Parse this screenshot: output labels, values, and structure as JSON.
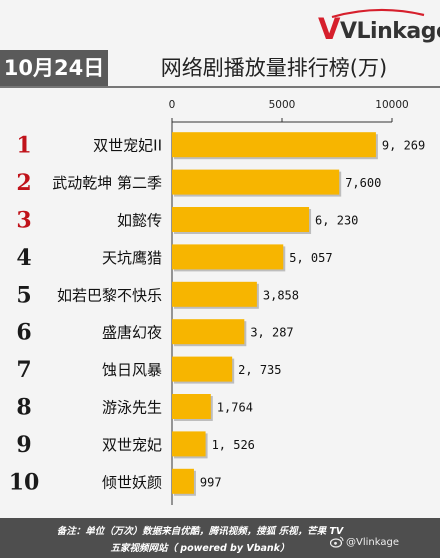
{
  "logo": {
    "brand": "VLinkage"
  },
  "header": {
    "date": "10月24日",
    "title": "网络剧播放量排行榜(万)"
  },
  "chart_data": {
    "type": "bar",
    "orientation": "horizontal",
    "title": "网络剧播放量排行榜(万)",
    "ranks": [
      "1",
      "2",
      "3",
      "4",
      "5",
      "6",
      "7",
      "8",
      "9",
      "10"
    ],
    "categories": [
      "双世宠妃II",
      "武动乾坤 第二季",
      "如懿传",
      "天坑鹰猎",
      "如若巴黎不快乐",
      "盛唐幻夜",
      "蚀日风暴",
      "游泳先生",
      "双世宠妃",
      "倾世妖颜"
    ],
    "values": [
      9269,
      7600,
      6230,
      5057,
      3858,
      3287,
      2735,
      1764,
      1526,
      997
    ],
    "value_labels": [
      "9, 269",
      "7,600",
      "6, 230",
      "5, 057",
      "3,858",
      "3, 287",
      "2, 735",
      "1,764",
      "1, 526",
      "997"
    ],
    "xlim": [
      0,
      10000
    ],
    "ticks": [
      0,
      5000,
      10000
    ],
    "tick_labels": [
      "0",
      "5000",
      "10000"
    ],
    "bar_color": "#f7b500",
    "rank_colors": [
      "#c0121a",
      "#c0121a",
      "#c0121a",
      "#1a1a1a",
      "#1a1a1a",
      "#1a1a1a",
      "#1a1a1a",
      "#1a1a1a",
      "#1a1a1a",
      "#1a1a1a"
    ]
  },
  "footer": {
    "line1": "备注：单位（万次）数据来自优酷，腾讯视频，搜狐 乐视，芒果 TV",
    "line2": "五家视频网站（ powered by Vbank）"
  },
  "watermark": {
    "text": "@Vlinkage"
  }
}
